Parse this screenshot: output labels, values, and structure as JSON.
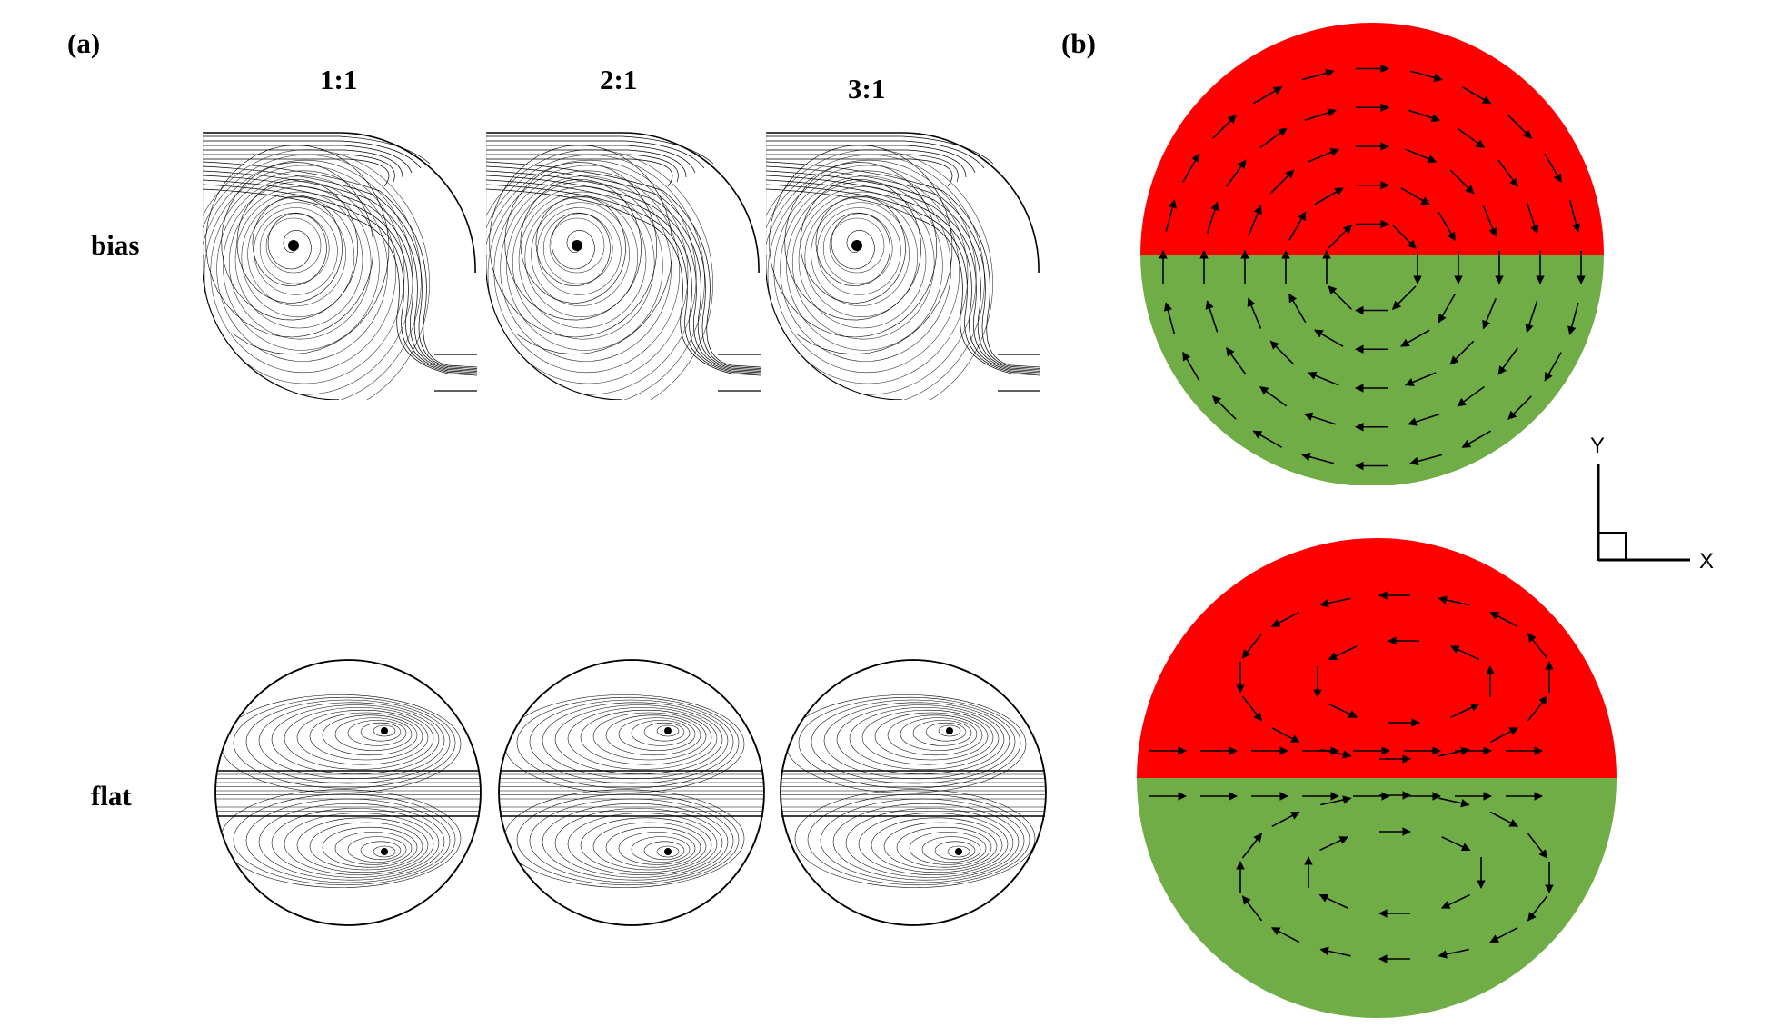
{
  "panel_a": {
    "tag": "(a)",
    "ratios": [
      "1:1",
      "2:1",
      "3:1"
    ],
    "rows": [
      "bias",
      "flat"
    ]
  },
  "panel_b": {
    "tag": "(b)",
    "axes": {
      "y_label": "Y",
      "x_label": "X"
    },
    "colors": {
      "upper_half": "#ff0000",
      "lower_half": "#70ad47",
      "arrow": "#000000"
    }
  },
  "streamline_color": "#000000"
}
